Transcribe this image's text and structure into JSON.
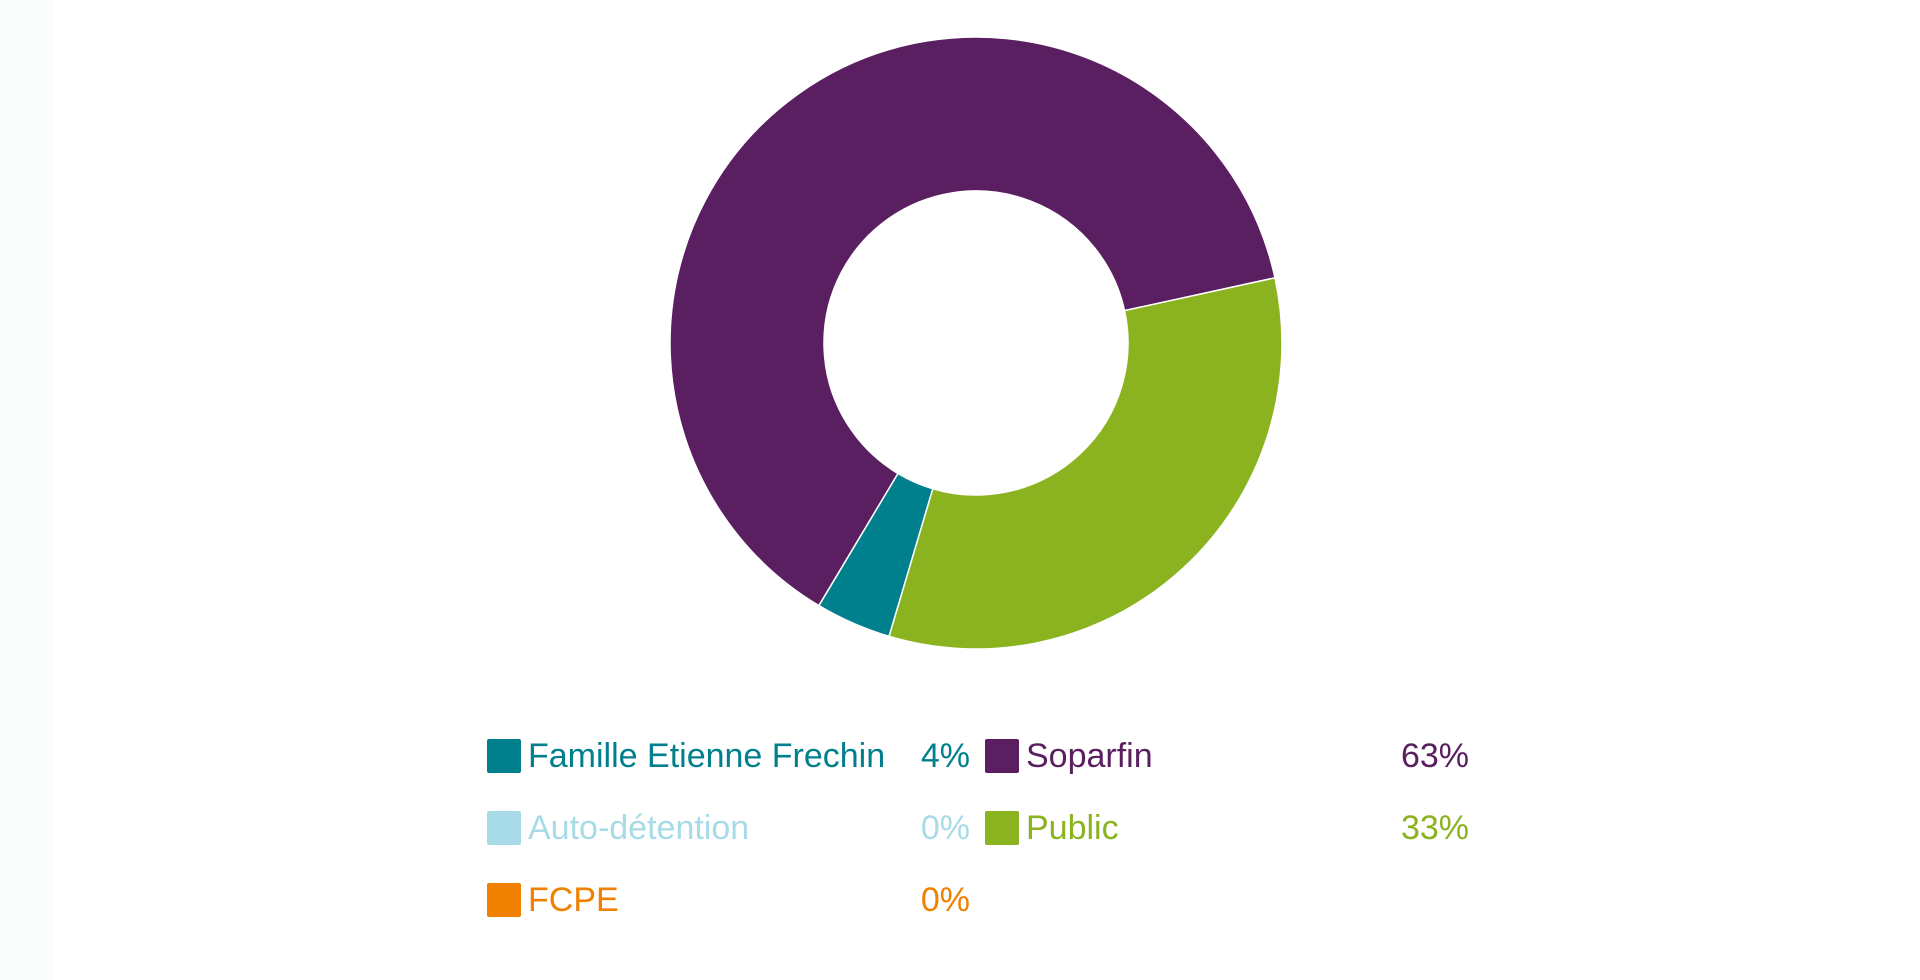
{
  "chart_data": {
    "type": "pie",
    "subtype": "donut",
    "title": "",
    "slices": [
      {
        "name": "Famille Etienne Frechin",
        "value": 4,
        "label": "4%",
        "color": "#007f8c"
      },
      {
        "name": "Auto-détention",
        "value": 0,
        "label": "0%",
        "color": "#a8dbe8"
      },
      {
        "name": "FCPE",
        "value": 0,
        "label": "0%",
        "color": "#f08000"
      },
      {
        "name": "Soparfin",
        "value": 63,
        "label": "63%",
        "color": "#5a1f60"
      },
      {
        "name": "Public",
        "value": 33,
        "label": "33%",
        "color": "#8bb320"
      }
    ],
    "legend_position": "bottom"
  }
}
